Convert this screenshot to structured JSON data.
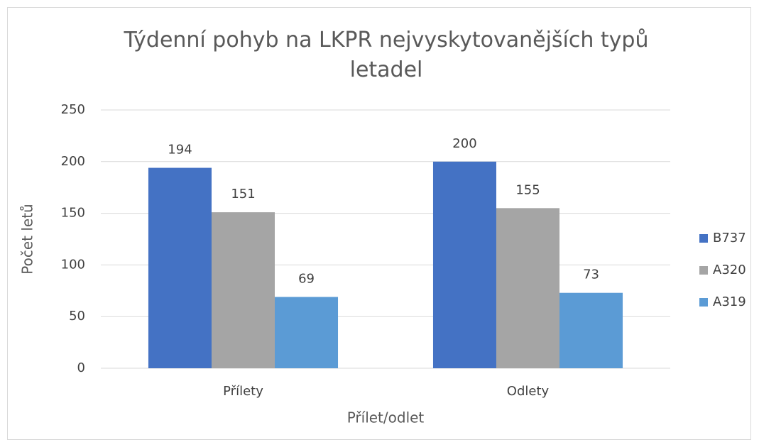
{
  "chart_data": {
    "type": "bar",
    "title": "Týdenní pohyb na LKPR nejvyskytovanějších typů letadel",
    "x_label": "Přílet/odlet",
    "y_label": "Počet letů",
    "categories": [
      "Přílety",
      "Odlety"
    ],
    "series": [
      {
        "name": "B737",
        "color": "#4472c4",
        "values": [
          194,
          200
        ]
      },
      {
        "name": "A320",
        "color": "#a5a5a5",
        "values": [
          151,
          155
        ]
      },
      {
        "name": "A319",
        "color": "#5b9bd5",
        "values": [
          69,
          73
        ]
      }
    ],
    "ylim": [
      0,
      250
    ],
    "yticks": [
      0,
      50,
      100,
      150,
      200,
      250
    ],
    "grid": true,
    "legend": "right"
  }
}
